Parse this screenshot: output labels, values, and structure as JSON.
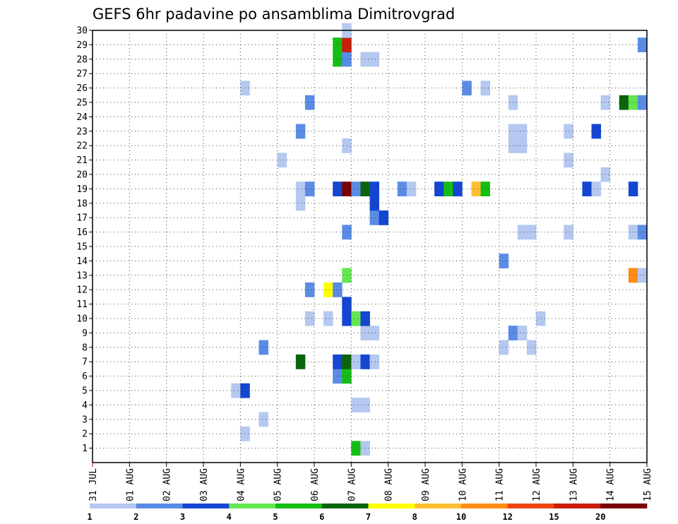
{
  "chart_data": {
    "type": "heatmap",
    "title": "GEFS 6hr padavine po ansamblima Dimitrovgrad",
    "x_tick_labels": [
      "31 JUL",
      "01 AUG",
      "02 AUG",
      "03 AUG",
      "04 AUG",
      "05 AUG",
      "06 AUG",
      "07 AUG",
      "08 AUG",
      "09 AUG",
      "10 AUG",
      "11 AUG",
      "12 AUG",
      "13 AUG",
      "14 AUG",
      "15 AUG"
    ],
    "y_tick_labels": [
      "1",
      "2",
      "3",
      "4",
      "5",
      "6",
      "7",
      "8",
      "9",
      "10",
      "11",
      "12",
      "13",
      "14",
      "15",
      "16",
      "17",
      "18",
      "19",
      "20",
      "21",
      "22",
      "23",
      "24",
      "25",
      "26",
      "27",
      "28",
      "29",
      "30"
    ],
    "x_range_days": [
      0,
      15
    ],
    "y_range": [
      0,
      30
    ],
    "grid": true,
    "colorbar": {
      "levels": [
        "1",
        "2",
        "3",
        "4",
        "5",
        "6",
        "7",
        "8",
        "10",
        "12",
        "15",
        "20"
      ],
      "colors": [
        "#b4c8f0",
        "#5a8ce6",
        "#1446d2",
        "#64e650",
        "#14be14",
        "#0a640a",
        "#ffff00",
        "#ffbe32",
        "#ff8c14",
        "#f04614",
        "#c81e0a",
        "#780000"
      ]
    },
    "cells": [
      {
        "day": 7.0,
        "member": 1,
        "c": 4
      },
      {
        "day": 7.25,
        "member": 1,
        "c": 0
      },
      {
        "day": 4.0,
        "member": 2,
        "c": 0
      },
      {
        "day": 4.5,
        "member": 3,
        "c": 0
      },
      {
        "day": 7.0,
        "member": 4,
        "c": 0
      },
      {
        "day": 7.25,
        "member": 4,
        "c": 0
      },
      {
        "day": 3.75,
        "member": 5,
        "c": 0
      },
      {
        "day": 4.0,
        "member": 5,
        "c": 2
      },
      {
        "day": 6.5,
        "member": 6,
        "c": 1
      },
      {
        "day": 6.75,
        "member": 6,
        "c": 4
      },
      {
        "day": 5.5,
        "member": 7,
        "c": 5
      },
      {
        "day": 6.5,
        "member": 7,
        "c": 2
      },
      {
        "day": 6.75,
        "member": 7,
        "c": 5
      },
      {
        "day": 7.0,
        "member": 7,
        "c": 0
      },
      {
        "day": 7.25,
        "member": 7,
        "c": 2
      },
      {
        "day": 7.5,
        "member": 7,
        "c": 0
      },
      {
        "day": 4.5,
        "member": 8,
        "c": 1
      },
      {
        "day": 11.0,
        "member": 8,
        "c": 0
      },
      {
        "day": 11.75,
        "member": 8,
        "c": 0
      },
      {
        "day": 7.25,
        "member": 9,
        "c": 0
      },
      {
        "day": 7.5,
        "member": 9,
        "c": 0
      },
      {
        "day": 11.25,
        "member": 9,
        "c": 1
      },
      {
        "day": 11.5,
        "member": 9,
        "c": 0
      },
      {
        "day": 5.75,
        "member": 10,
        "c": 0
      },
      {
        "day": 6.25,
        "member": 10,
        "c": 0
      },
      {
        "day": 6.75,
        "member": 10,
        "c": 2
      },
      {
        "day": 7.0,
        "member": 10,
        "c": 3
      },
      {
        "day": 7.25,
        "member": 10,
        "c": 2
      },
      {
        "day": 12.0,
        "member": 10,
        "c": 0
      },
      {
        "day": 6.75,
        "member": 11,
        "c": 2
      },
      {
        "day": 5.75,
        "member": 12,
        "c": 1
      },
      {
        "day": 6.25,
        "member": 12,
        "c": 6
      },
      {
        "day": 6.5,
        "member": 12,
        "c": 1
      },
      {
        "day": 6.75,
        "member": 13,
        "c": 3
      },
      {
        "day": 14.5,
        "member": 13,
        "c": 8
      },
      {
        "day": 14.75,
        "member": 13,
        "c": 0
      },
      {
        "day": 11.0,
        "member": 14,
        "c": 1
      },
      {
        "day": 6.75,
        "member": 16,
        "c": 1
      },
      {
        "day": 11.5,
        "member": 16,
        "c": 0
      },
      {
        "day": 11.75,
        "member": 16,
        "c": 0
      },
      {
        "day": 12.75,
        "member": 16,
        "c": 0
      },
      {
        "day": 14.5,
        "member": 16,
        "c": 0
      },
      {
        "day": 14.75,
        "member": 16,
        "c": 1
      },
      {
        "day": 7.5,
        "member": 17,
        "c": 1
      },
      {
        "day": 7.75,
        "member": 17,
        "c": 2
      },
      {
        "day": 5.5,
        "member": 18,
        "c": 0
      },
      {
        "day": 7.5,
        "member": 18,
        "c": 2
      },
      {
        "day": 5.5,
        "member": 19,
        "c": 0
      },
      {
        "day": 5.75,
        "member": 19,
        "c": 1
      },
      {
        "day": 6.5,
        "member": 19,
        "c": 2
      },
      {
        "day": 6.75,
        "member": 19,
        "c": 11
      },
      {
        "day": 7.0,
        "member": 19,
        "c": 1
      },
      {
        "day": 7.25,
        "member": 19,
        "c": 5
      },
      {
        "day": 7.5,
        "member": 19,
        "c": 2
      },
      {
        "day": 8.25,
        "member": 19,
        "c": 1
      },
      {
        "day": 8.5,
        "member": 19,
        "c": 0
      },
      {
        "day": 9.25,
        "member": 19,
        "c": 2
      },
      {
        "day": 9.5,
        "member": 19,
        "c": 4
      },
      {
        "day": 9.75,
        "member": 19,
        "c": 2
      },
      {
        "day": 10.25,
        "member": 19,
        "c": 7
      },
      {
        "day": 10.5,
        "member": 19,
        "c": 4
      },
      {
        "day": 13.25,
        "member": 19,
        "c": 2
      },
      {
        "day": 13.5,
        "member": 19,
        "c": 0
      },
      {
        "day": 14.5,
        "member": 19,
        "c": 2
      },
      {
        "day": 13.75,
        "member": 20,
        "c": 0
      },
      {
        "day": 5.0,
        "member": 21,
        "c": 0
      },
      {
        "day": 12.75,
        "member": 21,
        "c": 0
      },
      {
        "day": 6.75,
        "member": 22,
        "c": 0
      },
      {
        "day": 11.25,
        "member": 22,
        "c": 0
      },
      {
        "day": 11.5,
        "member": 22,
        "c": 0
      },
      {
        "day": 5.5,
        "member": 23,
        "c": 1
      },
      {
        "day": 11.25,
        "member": 23,
        "c": 0
      },
      {
        "day": 11.5,
        "member": 23,
        "c": 0
      },
      {
        "day": 12.75,
        "member": 23,
        "c": 0
      },
      {
        "day": 13.5,
        "member": 23,
        "c": 2
      },
      {
        "day": 5.75,
        "member": 25,
        "c": 1
      },
      {
        "day": 11.25,
        "member": 25,
        "c": 0
      },
      {
        "day": 13.75,
        "member": 25,
        "c": 0
      },
      {
        "day": 14.25,
        "member": 25,
        "c": 5
      },
      {
        "day": 14.5,
        "member": 25,
        "c": 3
      },
      {
        "day": 14.75,
        "member": 25,
        "c": 1
      },
      {
        "day": 4.0,
        "member": 26,
        "c": 0
      },
      {
        "day": 10.0,
        "member": 26,
        "c": 1
      },
      {
        "day": 10.5,
        "member": 26,
        "c": 0
      },
      {
        "day": 6.5,
        "member": 28,
        "c": 4
      },
      {
        "day": 6.75,
        "member": 28,
        "c": 1
      },
      {
        "day": 7.25,
        "member": 28,
        "c": 0
      },
      {
        "day": 7.5,
        "member": 28,
        "c": 0
      },
      {
        "day": 6.5,
        "member": 29,
        "c": 4
      },
      {
        "day": 6.75,
        "member": 29,
        "c": 10
      },
      {
        "day": 14.75,
        "member": 29,
        "c": 1
      },
      {
        "day": 6.75,
        "member": 30,
        "c": 0
      }
    ]
  }
}
